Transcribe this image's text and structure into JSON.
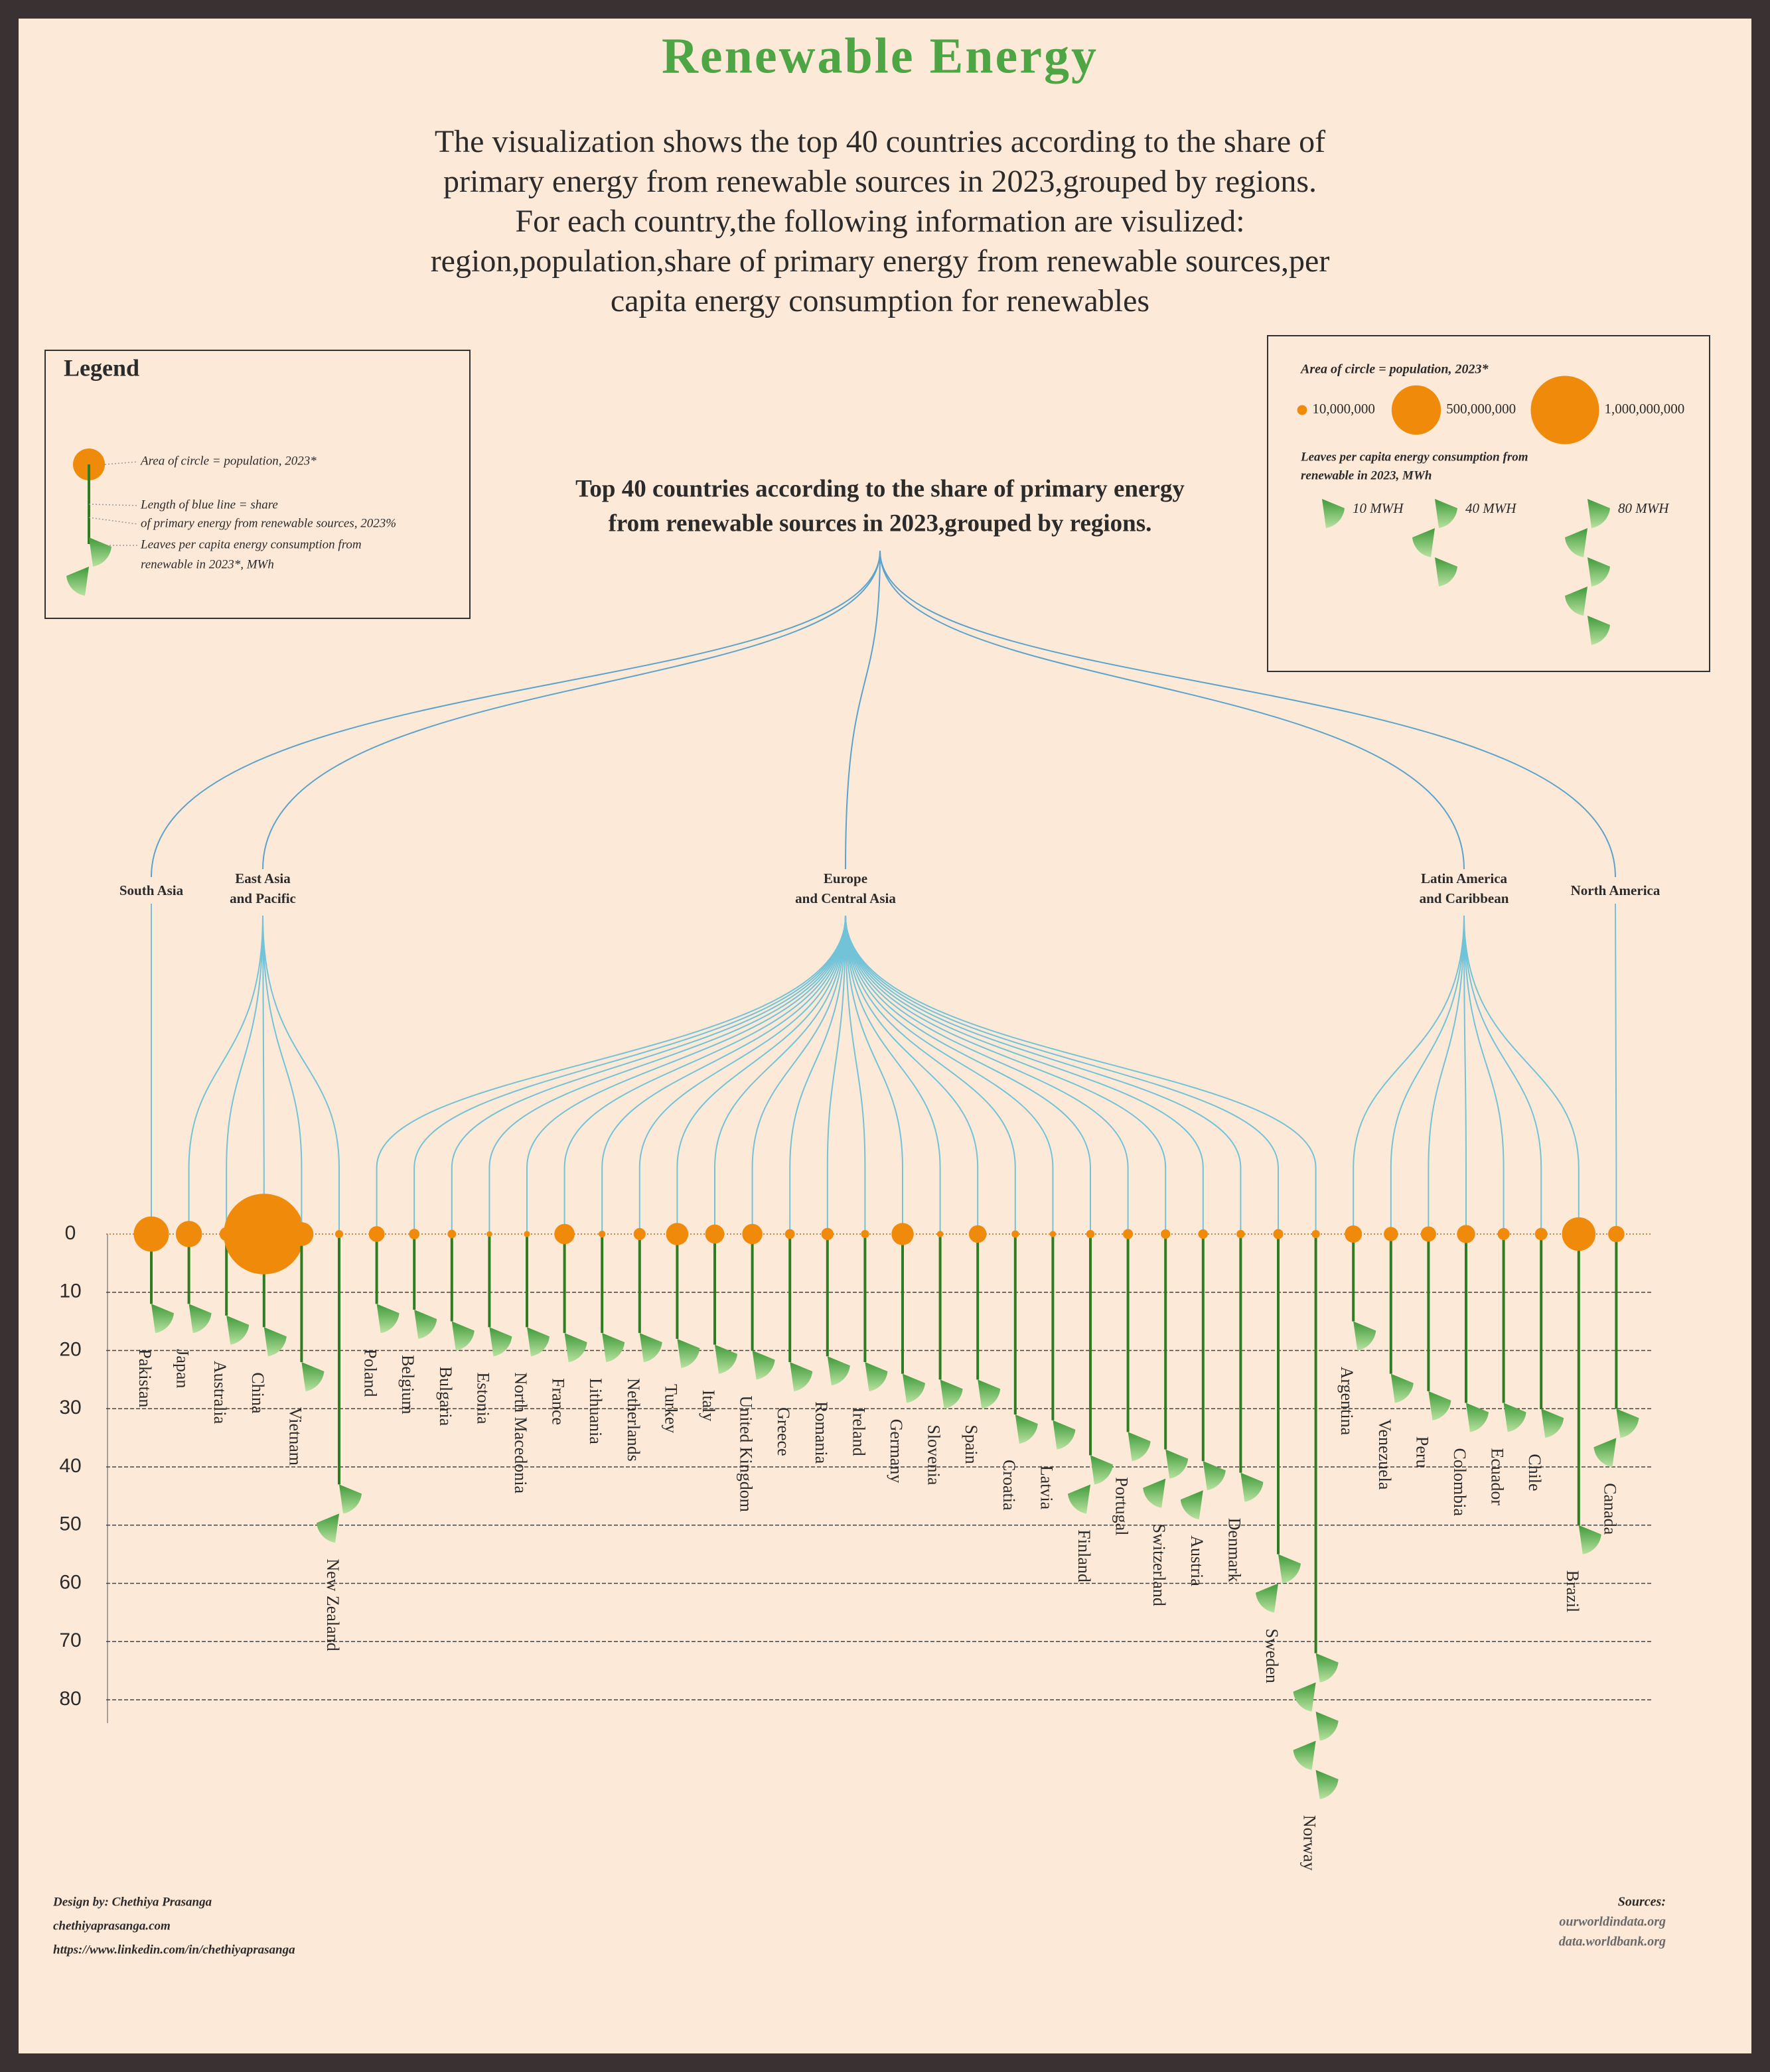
{
  "chart_data": {
    "type": "lollipop-tree",
    "title": "Renewable Energy",
    "subtitle": [
      "The visualization shows the top 40 countries according to the share of",
      "primary energy from renewable sources in 2023,grouped by regions.",
      "For each country,the following information are visulized:",
      "region,population,share of primary energy from renewable sources,per",
      "capita energy consumption for renewables"
    ],
    "chart_title": [
      "Top 40 countries according to the share of primary energy",
      "from renewable sources in 2023,grouped by regions."
    ],
    "legend": {
      "title": "Legend",
      "lines": [
        "Area of circle = population, 2023*",
        "Length of blue line  = share",
        "of primary energy from renewable sources, 2023%",
        "Leaves per capita energy consumption from",
        "renewable in 2023*, MWh"
      ]
    },
    "size_legend": {
      "title": "Area of circle = population, 2023*",
      "sizes": [
        {
          "value": 10000000,
          "label": "10,000,000"
        },
        {
          "value": 500000000,
          "label": "500,000,000"
        },
        {
          "value": 1000000000,
          "label": "1,000,000,000"
        }
      ],
      "leaf_title": [
        "Leaves per capita energy consumption from",
        "renewable in 2023, MWh"
      ],
      "leaves": [
        {
          "value": 10,
          "label": "10 MWH"
        },
        {
          "value": 40,
          "label": "40 MWH"
        },
        {
          "value": 80,
          "label": "80 MWH"
        }
      ]
    },
    "ylim": [
      0,
      84
    ],
    "yticks": [
      0,
      10,
      20,
      30,
      40,
      50,
      60,
      70,
      80
    ],
    "grid": true,
    "circle_color": "#f08a0a",
    "stem_color": "#2f7d22",
    "branch_color": "#72c3d8",
    "groups": [
      {
        "name": [
          "South Asia"
        ],
        "categories": [
          "Pakistan"
        ],
        "values": [
          12
        ],
        "population": [
          240000000
        ],
        "energy": [
          1
        ]
      },
      {
        "name": [
          "East Asia",
          "and Pacific"
        ],
        "categories": [
          "Japan",
          "Australia",
          "China",
          "Vietnam",
          "New Zealand"
        ],
        "values": [
          12,
          14,
          16,
          22,
          43
        ],
        "population": [
          124000000,
          26000000,
          1410000000,
          99000000,
          5200000
        ],
        "energy": [
          5,
          9,
          6,
          4,
          22
        ]
      },
      {
        "name": [
          "Europe",
          "and Central Asia"
        ],
        "categories": [
          "Poland",
          "Belgium",
          "Bulgaria",
          "Estonia",
          "North Macedonia",
          "France",
          "Lithuania",
          "Netherlands",
          "Turkey",
          "Italy",
          "United Kingdom",
          "Greece",
          "Romania",
          "Ireland",
          "Germany",
          "Slovenia",
          "Spain",
          "Croatia",
          "Latvia",
          "Finland",
          "Portugal",
          "Switzerland",
          "Austria",
          "Denmark",
          "Sweden",
          "Norway"
        ],
        "values": [
          12,
          13,
          15,
          16,
          16,
          17,
          17,
          17,
          18,
          19,
          20,
          22,
          21,
          22,
          24,
          25,
          25,
          31,
          32,
          38,
          34,
          37,
          39,
          41,
          55,
          72
        ],
        "population": [
          37000000,
          12000000,
          6500000,
          1300000,
          1800000,
          68000000,
          2900000,
          18000000,
          85000000,
          59000000,
          68000000,
          10000000,
          19000000,
          5300000,
          84000000,
          2100000,
          48000000,
          3900000,
          1900000,
          5600000,
          10500000,
          8900000,
          9100000,
          5900000,
          10500000,
          5500000
        ],
        "energy": [
          4,
          6,
          5,
          6,
          2,
          8,
          5,
          8,
          5,
          6,
          6,
          7,
          4,
          7,
          9,
          9,
          9,
          7,
          8,
          28,
          10,
          20,
          20,
          18,
          35,
          85
        ]
      },
      {
        "name": [
          "Latin America",
          "and Caribbean"
        ],
        "categories": [
          "Argentina",
          "Venezuela",
          "Peru",
          "Colombia",
          "Ecuador",
          "Chile",
          "Brazil"
        ],
        "values": [
          15,
          24,
          27,
          29,
          29,
          30,
          50
        ],
        "population": [
          46000000,
          28000000,
          34000000,
          52000000,
          18000000,
          19600000,
          216000000
        ],
        "energy": [
          5,
          6,
          3,
          3,
          3,
          7,
          10
        ]
      },
      {
        "name": [
          "North America"
        ],
        "categories": [
          "Canada"
        ],
        "values": [
          30
        ],
        "population": [
          40000000
        ],
        "energy": [
          30
        ]
      }
    ],
    "credits": [
      "Design by: Chethiya Prasanga",
      "chethiyaprasanga.com",
      "https://www.linkedin.com/in/chethiyaprasanga"
    ],
    "sources": [
      "Sources:",
      "ourworldindata.org",
      "data.worldbank.org"
    ]
  }
}
